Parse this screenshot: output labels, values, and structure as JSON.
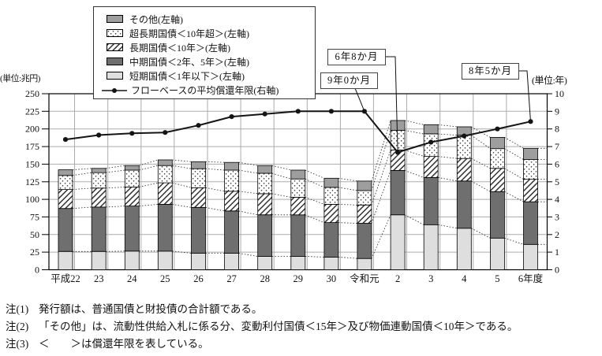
{
  "units": {
    "left": "(単位:兆円)",
    "right": "(単位:年)"
  },
  "legend": [
    {
      "label": "その他(左軸)",
      "swatch": "gray-fill"
    },
    {
      "label": "超長期国債＜10年超＞(左軸)",
      "swatch": "dot-pattern"
    },
    {
      "label": "長期国債＜10年＞(左軸)",
      "swatch": "hatch-pattern"
    },
    {
      "label": "中期国債＜2年、5年＞(左軸)",
      "swatch": "dark-gray-fill"
    },
    {
      "label": "短期国債＜1年以下＞(左軸)",
      "swatch": "light-gray-fill"
    },
    {
      "label": "フローベースの平均償還年限(右軸)",
      "swatch": "line-marker"
    }
  ],
  "annotations": [
    {
      "label": "6年8か月",
      "category": "2",
      "value_years": 6.67
    },
    {
      "label": "9年0か月",
      "category": "令和元",
      "value_years": 9.0
    },
    {
      "label": "8年5か月",
      "category": "6年度",
      "value_years": 8.42
    }
  ],
  "notes": [
    {
      "prefix": "注(1)",
      "text": "発行額は、普通国債と財投債の合計額である。"
    },
    {
      "prefix": "注(2)",
      "text": "「その他」は、流動性供給入札に係る分、変動利付国債＜15年＞及び物価連動国債＜10年＞である。"
    },
    {
      "prefix": "注(3)",
      "text": "＜　　＞は償還年限を表している。"
    }
  ],
  "chart_data": {
    "type": "bar",
    "subtype": "stacked-bar-with-line",
    "categories": [
      "平成22",
      "23",
      "24",
      "25",
      "26",
      "27",
      "28",
      "29",
      "30",
      "令和元",
      "2",
      "3",
      "4",
      "5",
      "6年度"
    ],
    "bar_series": [
      {
        "name": "短期国債＜1年以下＞(左軸)",
        "fill": "short",
        "values": [
          26,
          26,
          26.5,
          26.5,
          23.5,
          23.5,
          19,
          19,
          18,
          16,
          78,
          64,
          59,
          45,
          36
        ]
      },
      {
        "name": "中期国債＜2年、5年＞(左軸)",
        "fill": "medium",
        "values": [
          61,
          63,
          64,
          66.5,
          65,
          60,
          59,
          59,
          49,
          50,
          63,
          67,
          67,
          66,
          60.5
        ]
      },
      {
        "name": "長期国債＜10年＞(左軸)",
        "fill": "hatch",
        "values": [
          27,
          27,
          27,
          30.5,
          28,
          28,
          30,
          25,
          26,
          26,
          29,
          30,
          32,
          33,
          32
        ]
      },
      {
        "name": "超長期国債＜10年超＞(左軸)",
        "fill": "dots",
        "values": [
          20,
          22,
          24,
          24.5,
          27,
          30,
          29,
          26,
          24,
          20.5,
          28,
          32,
          33,
          28,
          28
        ]
      },
      {
        "name": "その他(左軸)",
        "fill": "other",
        "values": [
          8,
          6,
          6.5,
          8,
          10,
          11,
          11,
          12.5,
          13,
          13.5,
          14,
          13,
          12,
          16,
          16
        ]
      }
    ],
    "line_series": {
      "name": "フローベースの平均償還年限(右軸)",
      "values": [
        7.4,
        7.65,
        7.75,
        7.8,
        8.2,
        8.7,
        8.85,
        9.0,
        9.0,
        9.0,
        6.67,
        7.25,
        7.6,
        8.0,
        8.42
      ]
    },
    "left_axis": {
      "label": "(単位:兆円)",
      "min": 0,
      "max": 250,
      "step": 25
    },
    "right_axis": {
      "label": "(単位:年)",
      "min": 0,
      "max": 10,
      "step": 1
    },
    "layout": {
      "legend_position": "top-left",
      "grid": true
    },
    "colors": {
      "short": "#dedede",
      "medium": "#6f6f6f",
      "other": "#9e9e9e",
      "pattern_ink": "#333333",
      "line": "#141414",
      "grid": "#ababab",
      "frame": "#000000"
    }
  }
}
